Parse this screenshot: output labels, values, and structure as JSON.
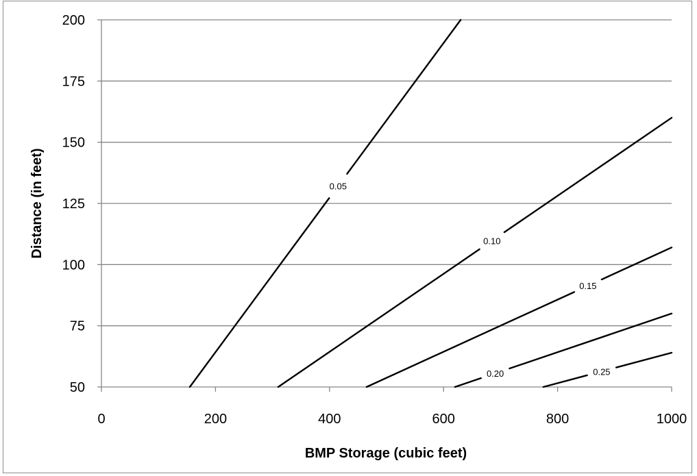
{
  "chart_data": {
    "type": "line",
    "title": "",
    "xlabel": "BMP Storage (cubic feet)",
    "ylabel": "Distance (in feet)",
    "xlim": [
      0,
      1000
    ],
    "ylim": [
      50,
      200
    ],
    "xticks": [
      0,
      200,
      400,
      600,
      800,
      1000
    ],
    "yticks": [
      50,
      75,
      100,
      125,
      150,
      175,
      200
    ],
    "grid": "horizontal",
    "legend": "none",
    "series": [
      {
        "label": "0.05",
        "points": [
          [
            155,
            50
          ],
          [
            630,
            200
          ]
        ],
        "label_at": [
          410,
          133
        ]
      },
      {
        "label": "0.10",
        "points": [
          [
            310,
            50
          ],
          [
            1000,
            160
          ]
        ],
        "label_at": [
          690,
          108
        ]
      },
      {
        "label": "0.15",
        "points": [
          [
            465,
            50
          ],
          [
            1000,
            107
          ]
        ],
        "label_at": [
          850,
          93
        ]
      },
      {
        "label": "0.20",
        "points": [
          [
            620,
            50
          ],
          [
            1000,
            80
          ]
        ],
        "label_at": [
          690,
          56
        ]
      },
      {
        "label": "0.25",
        "points": [
          [
            775,
            50
          ],
          [
            1000,
            64
          ]
        ],
        "label_at": [
          880,
          54
        ]
      }
    ]
  },
  "colors": {
    "line": "#000000",
    "grid": "#868686",
    "frame": "#8c8c8c"
  }
}
